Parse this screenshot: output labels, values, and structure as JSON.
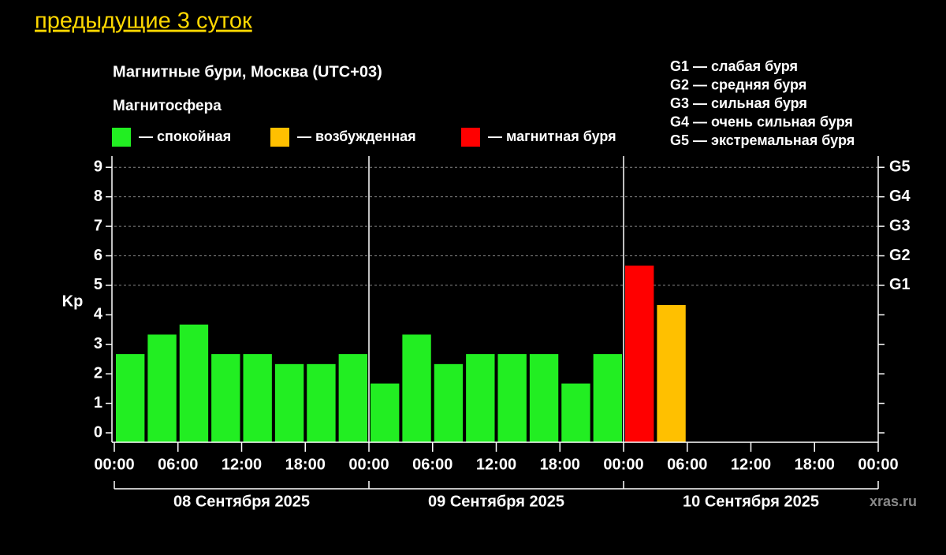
{
  "header": {
    "link": "предыдущие 3 суток"
  },
  "chart_data": {
    "type": "bar",
    "title": "Магнитные бури, Москва (UTC+03)",
    "legend_title": "Магнитосфера",
    "legend": [
      {
        "label": "— спокойная",
        "color": "#22ee22"
      },
      {
        "label": "— возбужденная",
        "color": "#ffc000"
      },
      {
        "label": "— магнитная буря",
        "color": "#ff0000"
      }
    ],
    "scale_notes": [
      "G1 — слабая буря",
      "G2 — средняя буря",
      "G3 — сильная буря",
      "G4 — очень сильная буря",
      "G5 — экстремальная буря"
    ],
    "ylabel": "Kp",
    "x": [
      0,
      3,
      6,
      9,
      12,
      15,
      18,
      21,
      24,
      27,
      30,
      33,
      36,
      39,
      42,
      45,
      48,
      51
    ],
    "bar_width": 3,
    "values": [
      2.67,
      3.33,
      3.67,
      2.67,
      2.67,
      2.33,
      2.33,
      2.67,
      1.67,
      3.33,
      2.33,
      2.67,
      2.67,
      2.67,
      1.67,
      2.67,
      5.67,
      4.33
    ],
    "colors": [
      "#22ee22",
      "#22ee22",
      "#22ee22",
      "#22ee22",
      "#22ee22",
      "#22ee22",
      "#22ee22",
      "#22ee22",
      "#22ee22",
      "#22ee22",
      "#22ee22",
      "#22ee22",
      "#22ee22",
      "#22ee22",
      "#22ee22",
      "#22ee22",
      "#ff0000",
      "#ffc000"
    ],
    "xlim": [
      0,
      72
    ],
    "xticks": [
      {
        "value": 0,
        "label": "00:00"
      },
      {
        "value": 6,
        "label": "06:00"
      },
      {
        "value": 12,
        "label": "12:00"
      },
      {
        "value": 18,
        "label": "18:00"
      },
      {
        "value": 24,
        "label": "00:00"
      },
      {
        "value": 30,
        "label": "06:00"
      },
      {
        "value": 36,
        "label": "12:00"
      },
      {
        "value": 42,
        "label": "18:00"
      },
      {
        "value": 48,
        "label": "00:00"
      },
      {
        "value": 54,
        "label": "06:00"
      },
      {
        "value": 60,
        "label": "12:00"
      },
      {
        "value": 66,
        "label": "18:00"
      },
      {
        "value": 72,
        "label": "00:00"
      }
    ],
    "days": [
      "08 Сентября 2025",
      "09 Сентября 2025",
      "10 Сентября 2025"
    ],
    "ylim": [
      -0.32,
      9.38
    ],
    "yticks": [
      0,
      1,
      2,
      3,
      4,
      5,
      6,
      7,
      8,
      9
    ],
    "y2ticks": [
      {
        "value": 5,
        "label": "G1"
      },
      {
        "value": 6,
        "label": "G2"
      },
      {
        "value": 7,
        "label": "G3"
      },
      {
        "value": 8,
        "label": "G4"
      },
      {
        "value": 9,
        "label": "G5"
      }
    ],
    "grid": true,
    "watermark": "xras.ru"
  }
}
